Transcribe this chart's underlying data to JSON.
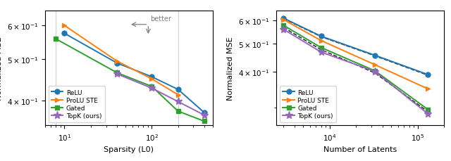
{
  "left": {
    "xlabel": "Sparsity (L0)",
    "ylabel": "Normalized MSE",
    "xlim": [
      6,
      500
    ],
    "ylim": [
      0.35,
      0.65
    ],
    "vlines": [
      8,
      200
    ],
    "series": {
      "ReLU": {
        "x": [
          10,
          40,
          100,
          200,
          400
        ],
        "y": [
          0.575,
          0.49,
          0.455,
          0.425,
          0.375
        ],
        "color": "#1f77b4",
        "marker": "o",
        "linestyle": "-"
      },
      "ProLU STE": {
        "x": [
          10,
          40,
          100,
          200
        ],
        "y": [
          0.6,
          0.495,
          0.45,
          0.413
        ],
        "color": "#ff7f0e",
        "marker": ">",
        "linestyle": "-"
      },
      "Gated": {
        "x": [
          8,
          40,
          100,
          200,
          400
        ],
        "y": [
          0.558,
          0.465,
          0.432,
          0.378,
          0.358
        ],
        "color": "#2ca02c",
        "marker": "s",
        "linestyle": "-"
      },
      "TopK (ours)": {
        "x": [
          40,
          100,
          200,
          400
        ],
        "y": [
          0.462,
          0.428,
          0.398,
          0.37
        ],
        "color": "#9467bd",
        "marker": "*",
        "linestyle": "-"
      }
    }
  },
  "right": {
    "xlabel": "Number of Latents",
    "ylabel": "Normalized MSE",
    "xlim": [
      2500,
      200000
    ],
    "ylim": [
      0.26,
      0.65
    ],
    "series": {
      "ReLU": {
        "x": [
          3000,
          8000,
          32768,
          131072
        ],
        "y": [
          0.612,
          0.53,
          0.455,
          0.39
        ],
        "color": "#1f77b4",
        "marker": "o",
        "linestyle": "-"
      },
      "ProLU STE": {
        "x": [
          3000,
          8000,
          32768,
          131072
        ],
        "y": [
          0.605,
          0.512,
          0.422,
          0.348
        ],
        "color": "#ff7f0e",
        "marker": ">",
        "linestyle": "-"
      },
      "Gated": {
        "x": [
          3000,
          8000,
          32768,
          131072
        ],
        "y": [
          0.578,
          0.484,
          0.402,
          0.295
        ],
        "color": "#2ca02c",
        "marker": "s",
        "linestyle": "-"
      },
      "TopK (ours)": {
        "x": [
          3000,
          8000,
          32768,
          131072
        ],
        "y": [
          0.56,
          0.467,
          0.4,
          0.285
        ],
        "color": "#9467bd",
        "marker": "*",
        "linestyle": "-"
      }
    },
    "dashed_fit": [
      {
        "x": [
          3000,
          8000,
          32768,
          131072
        ],
        "y": [
          0.61,
          0.528,
          0.453,
          0.388
        ]
      },
      {
        "x": [
          3000,
          8000,
          32768,
          131072
        ],
        "y": [
          0.568,
          0.476,
          0.395,
          0.29
        ]
      }
    ]
  }
}
